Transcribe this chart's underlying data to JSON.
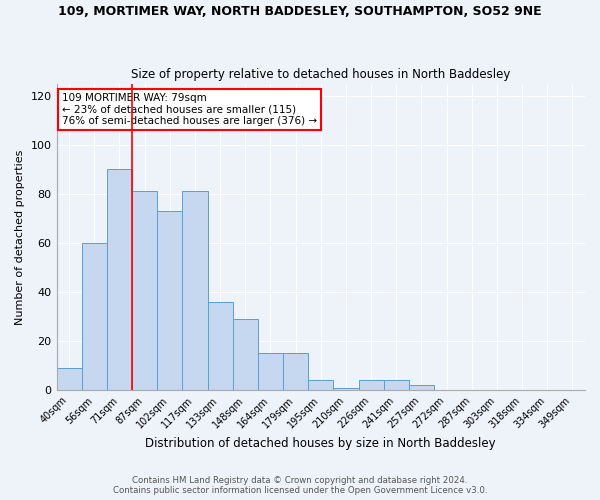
{
  "title": "109, MORTIMER WAY, NORTH BADDESLEY, SOUTHAMPTON, SO52 9NE",
  "subtitle": "Size of property relative to detached houses in North Baddesley",
  "xlabel": "Distribution of detached houses by size in North Baddesley",
  "ylabel": "Number of detached properties",
  "footer1": "Contains HM Land Registry data © Crown copyright and database right 2024.",
  "footer2": "Contains public sector information licensed under the Open Government Licence v3.0.",
  "categories": [
    "40sqm",
    "56sqm",
    "71sqm",
    "87sqm",
    "102sqm",
    "117sqm",
    "133sqm",
    "148sqm",
    "164sqm",
    "179sqm",
    "195sqm",
    "210sqm",
    "226sqm",
    "241sqm",
    "257sqm",
    "272sqm",
    "287sqm",
    "303sqm",
    "318sqm",
    "334sqm",
    "349sqm"
  ],
  "values": [
    9,
    60,
    90,
    81,
    73,
    81,
    36,
    29,
    15,
    15,
    4,
    1,
    4,
    4,
    2,
    0,
    0,
    0,
    0,
    0,
    0
  ],
  "bar_color": "#c5d8f0",
  "bar_edge_color": "#5a9fd4",
  "bar_width": 1.0,
  "ylim": [
    0,
    125
  ],
  "yticks": [
    0,
    20,
    40,
    60,
    80,
    100,
    120
  ],
  "annotation_text": "109 MORTIMER WAY: 79sqm\n← 23% of detached houses are smaller (115)\n76% of semi-detached houses are larger (376) →",
  "red_line_x": 2.5,
  "bg_color": "#eef2f9",
  "grid_color": "#ffffff"
}
